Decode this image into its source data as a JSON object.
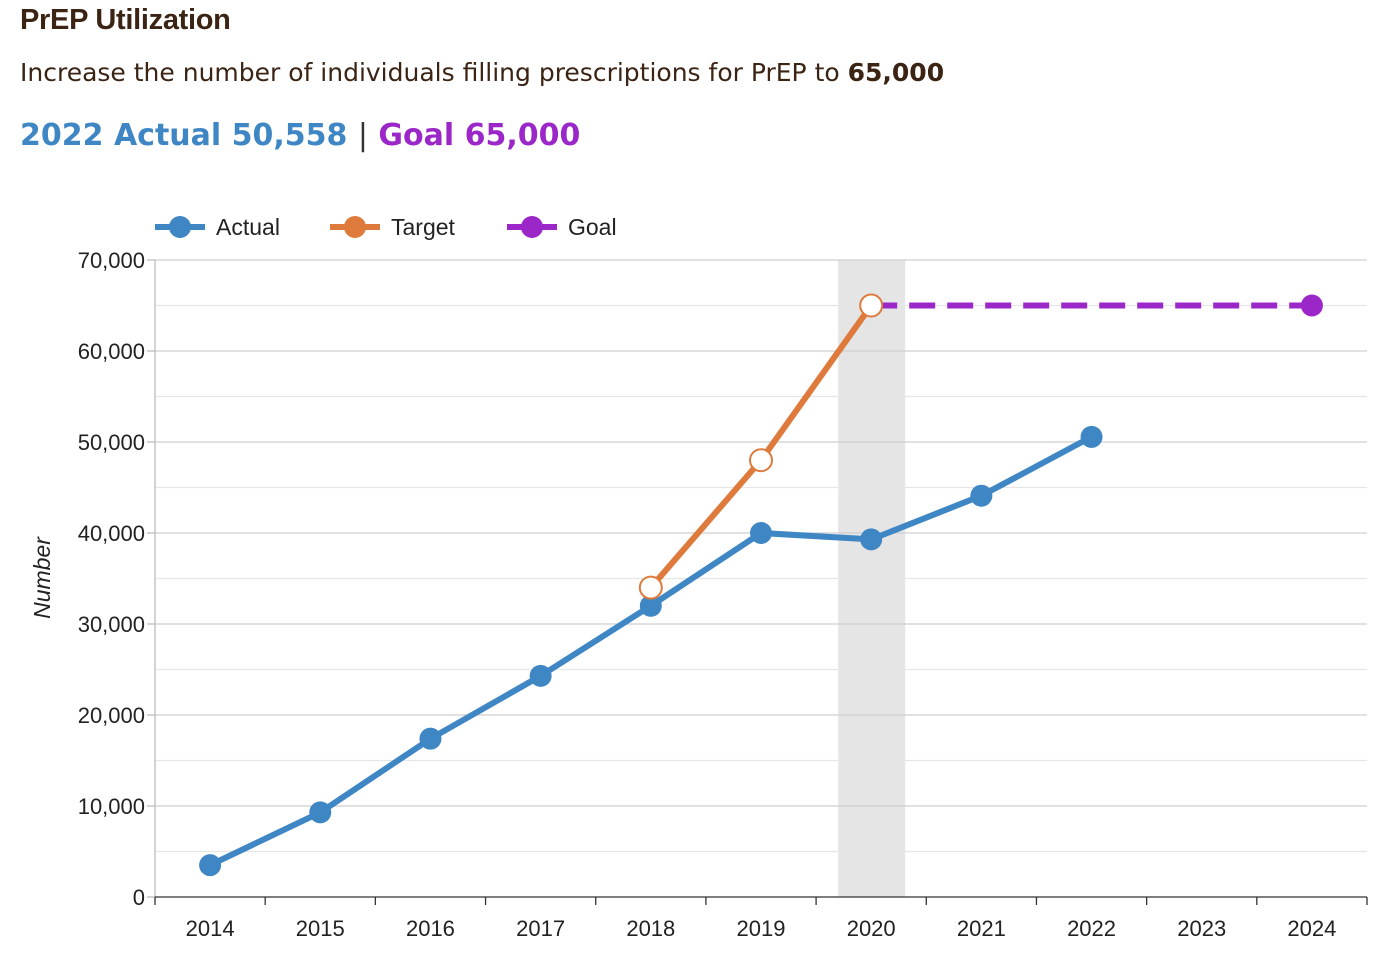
{
  "header": {
    "title": "PrEP Utilization",
    "subtitle_prefix": "Increase the number of individuals filling prescriptions for PrEP to ",
    "subtitle_value": "65,000",
    "actual_label": "2022 Actual 50,558",
    "separator": "|",
    "goal_label": "Goal 65,000"
  },
  "colors": {
    "actual": "#3f86c4",
    "target": "#de7a3b",
    "goal": "#9b27c9",
    "highlight_band": "#e5e5e5",
    "grid": "#d0d0d0"
  },
  "chart_data": {
    "type": "line",
    "title": "PrEP Utilization",
    "xlabel": "",
    "ylabel": "Number",
    "categories": [
      "2014",
      "2015",
      "2016",
      "2017",
      "2018",
      "2019",
      "2020",
      "2021",
      "2022",
      "2023",
      "2024"
    ],
    "ylim": [
      0,
      70000
    ],
    "yticks": [
      0,
      10000,
      20000,
      30000,
      40000,
      50000,
      60000,
      70000
    ],
    "ytick_labels": [
      "0",
      "10,000",
      "20,000",
      "30,000",
      "40,000",
      "50,000",
      "60,000",
      "70,000"
    ],
    "highlight_category": "2020",
    "legend": {
      "placement": "top-left"
    },
    "series": [
      {
        "name": "Actual",
        "style": "solid",
        "marker": "filled",
        "values": [
          3500,
          9300,
          17400,
          24300,
          32000,
          40000,
          39300,
          44100,
          50558,
          null,
          null
        ]
      },
      {
        "name": "Target",
        "style": "solid",
        "marker": "hollow",
        "values": [
          null,
          null,
          null,
          null,
          34000,
          48000,
          65000,
          null,
          null,
          null,
          null
        ]
      },
      {
        "name": "Goal",
        "style": "dashed",
        "marker": "filled-end",
        "values": [
          null,
          null,
          null,
          null,
          null,
          null,
          65000,
          null,
          null,
          null,
          65000
        ]
      }
    ]
  }
}
